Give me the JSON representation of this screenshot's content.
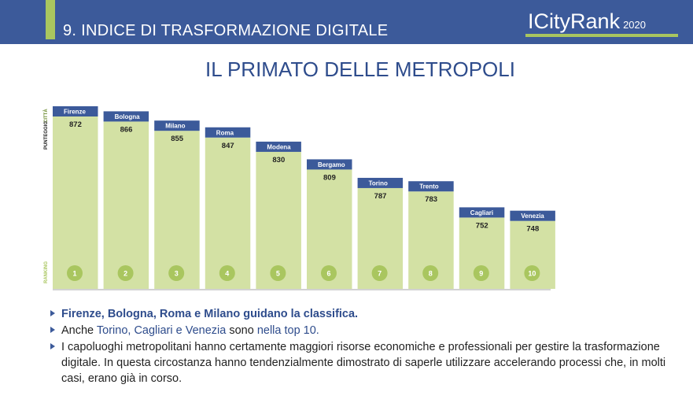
{
  "header": {
    "section_title": "9. INDICE DI TRASFORMAZIONE DIGITALE",
    "brand": "ICityRank",
    "year": "2020"
  },
  "page_title": "IL PRIMATO DELLE METROPOLI",
  "chart_data": {
    "type": "bar",
    "axis_labels": {
      "city": "CITTÀ",
      "score": "PUNTEGGIO",
      "ranking": "RANKING"
    },
    "categories": [
      "Firenze",
      "Bologna",
      "Milano",
      "Roma",
      "Modena",
      "Bergamo",
      "Torino",
      "Trento",
      "Cagliari",
      "Venezia"
    ],
    "values": [
      872,
      866,
      855,
      847,
      830,
      809,
      787,
      783,
      752,
      748
    ],
    "ranks": [
      "1",
      "2",
      "3",
      "4",
      "5",
      "6",
      "7",
      "8",
      "9",
      "10"
    ],
    "colors": {
      "bar": "#d3e1a4",
      "label_bg": "#3c5a9a",
      "rank_circle": "#a9c65f"
    }
  },
  "bullets": [
    {
      "parts": [
        {
          "t": "Firenze, Bologna, Roma e Milano guidano la classifica.",
          "s": "hl"
        }
      ]
    },
    {
      "parts": [
        {
          "t": "Anche ",
          "s": ""
        },
        {
          "t": "Torino, Cagliari e Venezia",
          "s": "hl2"
        },
        {
          "t": " sono ",
          "s": ""
        },
        {
          "t": "nella top 10.",
          "s": "hl2"
        }
      ]
    },
    {
      "parts": [
        {
          "t": "I capoluoghi metropolitani hanno certamente maggiori risorse economiche e professionali per gestire la trasformazione digitale. In questa circostanza hanno tendenzialmente dimostrato di saperle utilizzare accelerando processi che, in molti casi, erano già in corso.",
          "s": ""
        }
      ]
    }
  ]
}
